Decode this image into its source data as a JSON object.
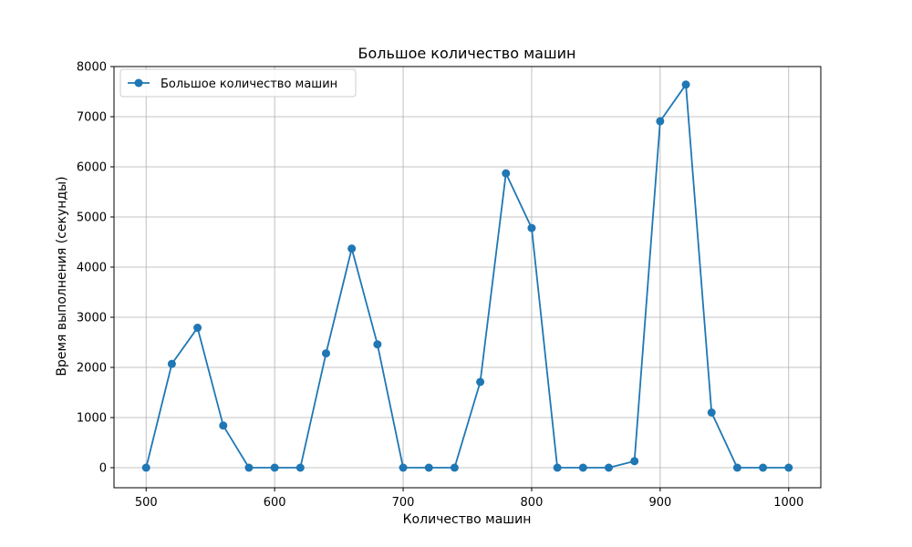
{
  "chart_data": {
    "type": "line",
    "title": "Большое количество машин",
    "xlabel": "Количество машин",
    "ylabel": "Время выполнения (секунды)",
    "xlim": [
      475,
      1025
    ],
    "ylim": [
      -400,
      8000
    ],
    "xticks": [
      500,
      600,
      700,
      800,
      900,
      1000
    ],
    "yticks": [
      0,
      1000,
      2000,
      3000,
      4000,
      5000,
      6000,
      7000,
      8000
    ],
    "grid": true,
    "legend_position": "upper-left",
    "x": [
      500,
      520,
      540,
      560,
      580,
      600,
      620,
      640,
      660,
      680,
      700,
      720,
      740,
      760,
      780,
      800,
      820,
      840,
      860,
      880,
      900,
      920,
      940,
      960,
      980,
      1000
    ],
    "series": [
      {
        "name": "Большое количество машин",
        "color": "#1f77b4",
        "marker": "circle",
        "values": [
          0,
          2070,
          2790,
          840,
          0,
          0,
          0,
          2280,
          4370,
          2460,
          0,
          0,
          0,
          1710,
          5870,
          4780,
          0,
          0,
          0,
          130,
          6910,
          7640,
          1100,
          0,
          0,
          0
        ]
      }
    ]
  }
}
